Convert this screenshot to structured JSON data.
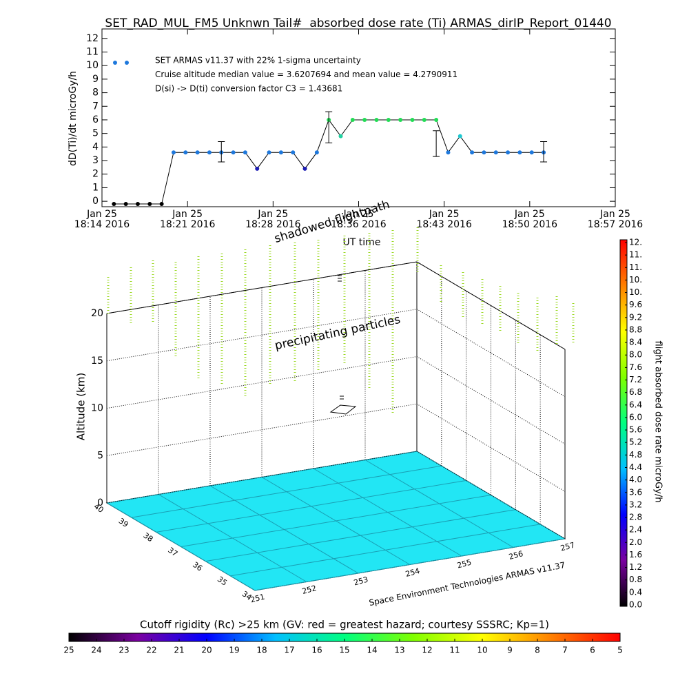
{
  "chart_data": [
    {
      "type": "line",
      "title": "SET_RAD_MUL_FM5 Unknwn Tail#  absorbed dose rate (Ti) ARMAS_dirIP_Report_01440",
      "y_label": "dD(Ti)/dt microGy/h",
      "x_label": "UT time",
      "annotations": [
        "SET ARMAS v11.37 with 22% 1-sigma uncertainty",
        "Cruise altitude median value = 3.6207694 and mean value = 4.2790911",
        "D(si) -> D(ti) conversion factor C3 = 1.43681"
      ],
      "xlim": [
        "2016-01-25 18:14:00",
        "2016-01-25 18:57:00"
      ],
      "xticks": [
        {
          "value": "2016-01-25 18:14:00",
          "label": "Jan 25\n18:14 2016"
        },
        {
          "value": "2016-01-25 18:21:10",
          "label": "Jan 25\n18:21 2016"
        },
        {
          "value": "2016-01-25 18:28:20",
          "label": "Jan 25\n18:28 2016"
        },
        {
          "value": "2016-01-25 18:35:30",
          "label": "Jan 25\n18:36 2016"
        },
        {
          "value": "2016-01-25 18:42:40",
          "label": "Jan 25\n18:43 2016"
        },
        {
          "value": "2016-01-25 18:49:50",
          "label": "Jan 25\n18:50 2016"
        },
        {
          "value": "2016-01-25 18:57:00",
          "label": "Jan 25\n18:57 2016"
        }
      ],
      "ylim": [
        -0.4,
        12.7
      ],
      "yticks": [
        0,
        1,
        2,
        3,
        4,
        5,
        6,
        7,
        8,
        9,
        10,
        11,
        12
      ],
      "x": [
        "2016-01-25 18:15:00",
        "2016-01-25 18:16:00",
        "2016-01-25 18:17:00",
        "2016-01-25 18:18:00",
        "2016-01-25 18:19:00",
        "2016-01-25 18:20:00",
        "2016-01-25 18:21:00",
        "2016-01-25 18:22:00",
        "2016-01-25 18:23:00",
        "2016-01-25 18:24:00",
        "2016-01-25 18:25:00",
        "2016-01-25 18:26:00",
        "2016-01-25 18:27:00",
        "2016-01-25 18:28:00",
        "2016-01-25 18:29:00",
        "2016-01-25 18:30:00",
        "2016-01-25 18:31:00",
        "2016-01-25 18:32:00",
        "2016-01-25 18:33:00",
        "2016-01-25 18:34:00",
        "2016-01-25 18:35:00",
        "2016-01-25 18:36:00",
        "2016-01-25 18:37:00",
        "2016-01-25 18:38:00",
        "2016-01-25 18:39:00",
        "2016-01-25 18:40:00",
        "2016-01-25 18:41:00",
        "2016-01-25 18:42:00",
        "2016-01-25 18:43:00",
        "2016-01-25 18:44:00",
        "2016-01-25 18:45:00",
        "2016-01-25 18:46:00",
        "2016-01-25 18:47:00",
        "2016-01-25 18:48:00",
        "2016-01-25 18:49:00",
        "2016-01-25 18:50:00",
        "2016-01-25 18:51:00"
      ],
      "series": [
        {
          "color": "#1e78dc",
          "line_color": "#000000",
          "values": [
            -0.2,
            -0.2,
            -0.2,
            -0.2,
            -0.2,
            3.6,
            3.6,
            3.6,
            3.6,
            3.6,
            3.6,
            3.6,
            2.4,
            3.6,
            3.6,
            3.6,
            2.4,
            3.6,
            6.0,
            4.8,
            6.0,
            6.0,
            6.0,
            6.0,
            6.0,
            6.0,
            6.0,
            6.0,
            3.6,
            4.8,
            3.6,
            3.6,
            3.6,
            3.6,
            3.6,
            3.6,
            3.6
          ],
          "colors": [
            "#000000",
            "#000000",
            "#000000",
            "#000000",
            "#000000",
            "#1e78dc",
            "#1e78dc",
            "#1e78dc",
            "#1e78dc",
            "#1e78dc",
            "#1e78dc",
            "#1e78dc",
            "#1c1cb4",
            "#1e78dc",
            "#1e78dc",
            "#1e78dc",
            "#1c1cb4",
            "#1e78dc",
            "#22dd55",
            "#20d0a0",
            "#22dd55",
            "#22dd55",
            "#22dd55",
            "#22dd55",
            "#22dd55",
            "#22dd55",
            "#22dd55",
            "#22dd55",
            "#1e78dc",
            "#20c8d0",
            "#1e78dc",
            "#1e78dc",
            "#1e78dc",
            "#1e78dc",
            "#1e78dc",
            "#1e78dc",
            "#1e78dc"
          ]
        }
      ],
      "error_bars": {
        "x": [
          "2016-01-25 18:24:00",
          "2016-01-25 18:33:00",
          "2016-01-25 18:42:00",
          "2016-01-25 18:51:00"
        ],
        "low": [
          2.9,
          4.3,
          3.3,
          2.9
        ],
        "high": [
          4.4,
          6.6,
          5.2,
          4.4
        ]
      }
    },
    {
      "type": "scatter3d",
      "z_label": "Altitude (km)",
      "credit": "Space Environment Technologies ARMAS v11.37",
      "annotations": [
        "precipitating particles",
        "shadowed flightpath"
      ],
      "xlim": [
        251,
        257
      ],
      "xticks": [
        251,
        252,
        253,
        254,
        255,
        256,
        257
      ],
      "ylim": [
        34,
        40
      ],
      "yticks": [
        34,
        35,
        36,
        37,
        38,
        39,
        40
      ],
      "zlim": [
        0,
        20
      ],
      "zticks": [
        0,
        5,
        10,
        15,
        20
      ],
      "floor_color": "#22e6f4"
    },
    {
      "type": "colorbar",
      "orientation": "vertical",
      "label": "flight absorbed dose rate microGy/h",
      "lim": [
        0,
        11.6
      ],
      "ticks": [
        {
          "value": 0,
          "label": "0.0"
        },
        0.4,
        0.8,
        1.2,
        1.6,
        {
          "value": 2,
          "label": "2.0"
        },
        2.4,
        2.8,
        3.2,
        3.6,
        {
          "value": 4,
          "label": "4.0"
        },
        4.4,
        4.8,
        5.2,
        5.6,
        {
          "value": 6,
          "label": "6.0"
        },
        6.4,
        6.8,
        7.2,
        7.6,
        {
          "value": 8,
          "label": "8.0"
        },
        8.4,
        8.8,
        9.2,
        9.6,
        {
          "value": 10,
          "label": "10."
        },
        {
          "value": 10.4,
          "label": "10."
        },
        {
          "value": 10.8,
          "label": "11."
        },
        {
          "value": 11.2,
          "label": "11."
        },
        {
          "value": 11.6,
          "label": "12."
        }
      ],
      "colors": [
        "#000000",
        "#7a00a0",
        "#0000ff",
        "#00bfff",
        "#00ff80",
        "#80ff00",
        "#ffff00",
        "#ff8000",
        "#ff0000"
      ]
    },
    {
      "type": "colorbar",
      "orientation": "horizontal",
      "title": "Cutoff rigidity (Rc) >25 km (GV: red = greatest hazard; courtesy SSSRC; Kp=1)",
      "lim": [
        25,
        5
      ],
      "ticks": [
        25,
        24,
        23,
        22,
        21,
        20,
        19,
        18,
        17,
        16,
        15,
        14,
        13,
        12,
        11,
        10,
        9,
        8,
        7,
        6,
        5
      ],
      "colors": [
        "#000000",
        "#7a00a0",
        "#0000ff",
        "#00bfff",
        "#00ff80",
        "#80ff00",
        "#ffff00",
        "#ff8000",
        "#ff0000"
      ]
    }
  ]
}
